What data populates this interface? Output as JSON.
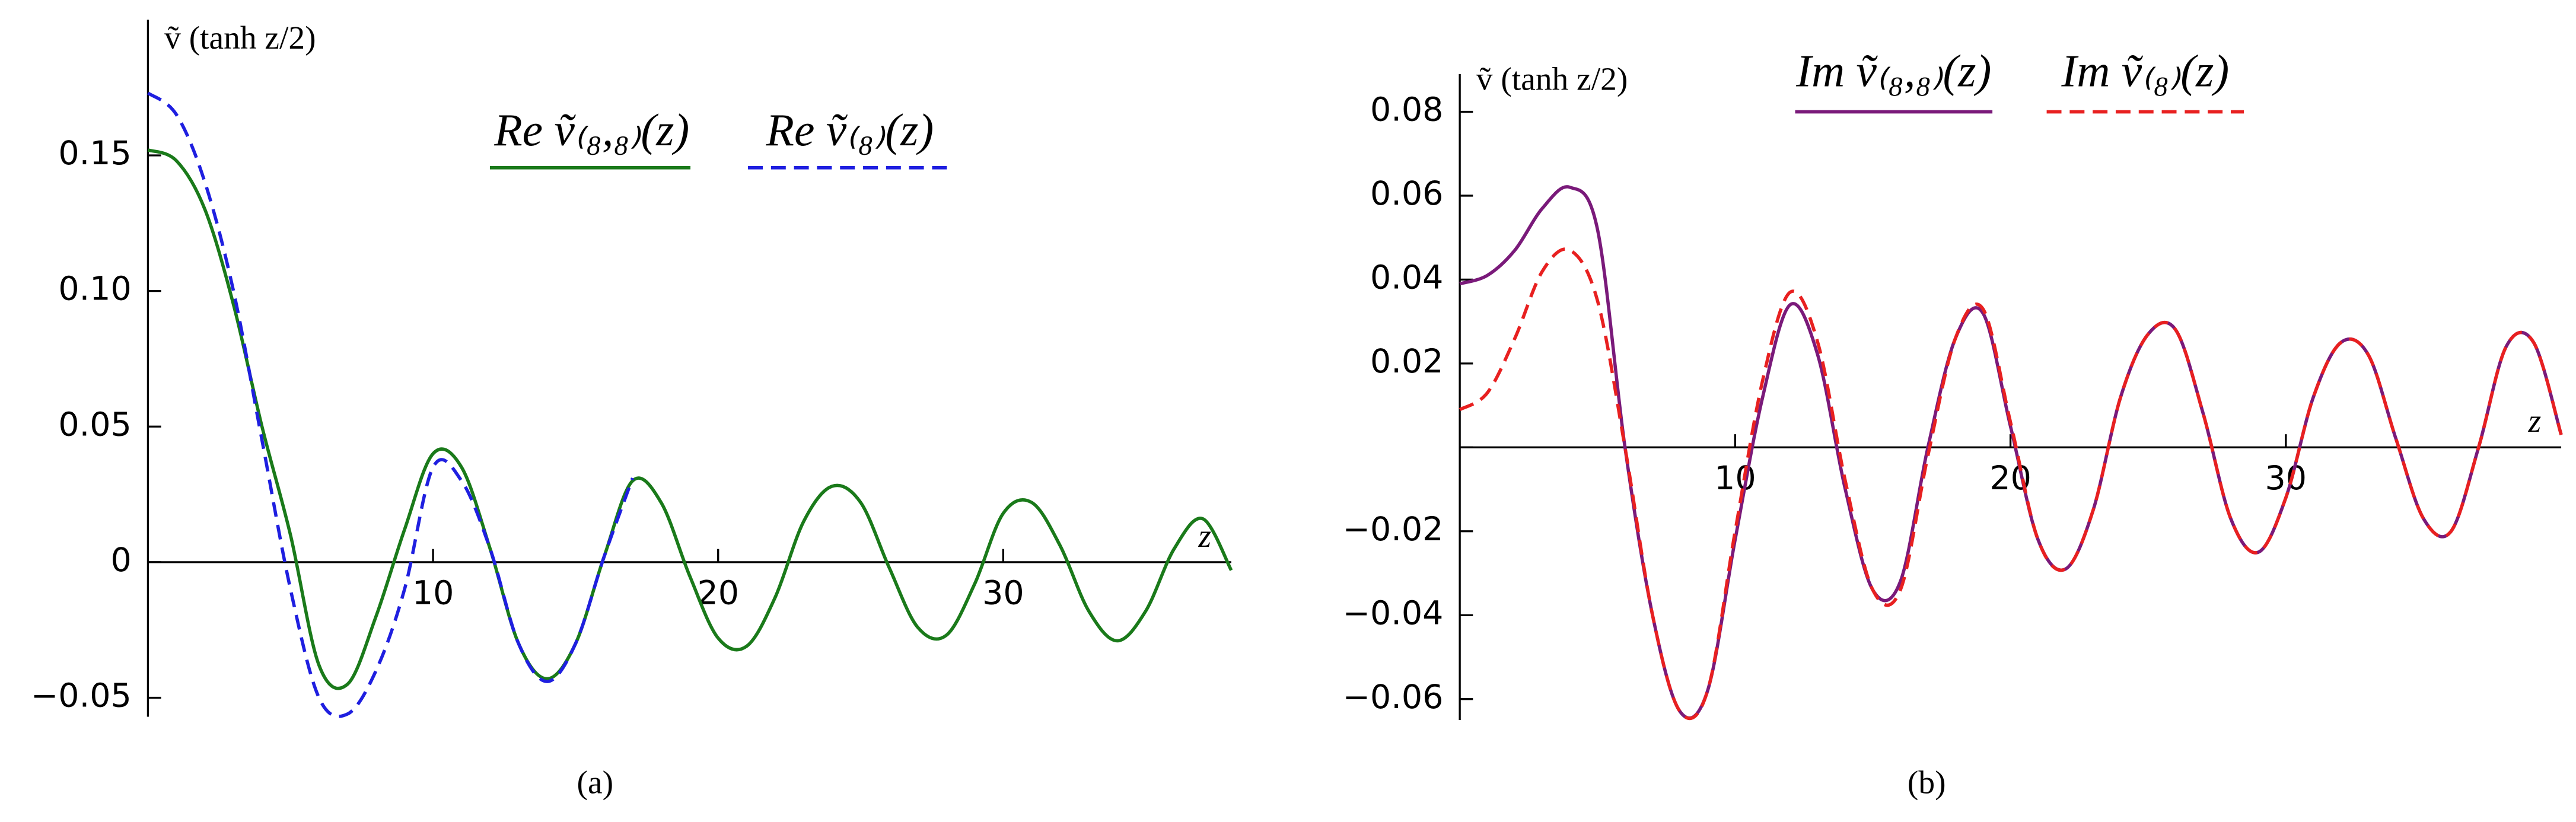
{
  "chart_data": [
    {
      "type": "line",
      "caption": "(a)",
      "y_label": "ṽ (tanh z/2)",
      "x_label": "z",
      "xlim": [
        0,
        38
      ],
      "ylim": [
        -0.057,
        0.2
      ],
      "xticks": [
        10,
        20,
        30
      ],
      "yticks": [
        {
          "value": -0.05,
          "label": "−0.05"
        },
        0,
        0.05,
        {
          "value": 0.1,
          "label": "0.10"
        },
        0.15
      ],
      "x": [
        0,
        1,
        2,
        3,
        4,
        5,
        6,
        7,
        8,
        9,
        10,
        11,
        12,
        13,
        14,
        15,
        16,
        17,
        18,
        19,
        20,
        21,
        22,
        23,
        24,
        25,
        26,
        27,
        28,
        29,
        30,
        31,
        32,
        33,
        34,
        35,
        36,
        37,
        38
      ],
      "series": [
        {
          "name": "Re ṽ₍₈,₈₎(z)",
          "color": "#1a7a1a",
          "dash": false,
          "values": [
            0.152,
            0.148,
            0.13,
            0.095,
            0.05,
            0.01,
            -0.038,
            -0.045,
            -0.02,
            0.012,
            0.04,
            0.035,
            0.005,
            -0.03,
            -0.043,
            -0.03,
            0.002,
            0.03,
            0.022,
            -0.005,
            -0.028,
            -0.031,
            -0.013,
            0.015,
            0.028,
            0.022,
            -0.002,
            -0.024,
            -0.027,
            -0.008,
            0.018,
            0.022,
            0.006,
            -0.018,
            -0.029,
            -0.018,
            0.005,
            0.016,
            -0.003
          ]
        },
        {
          "name": "Re ṽ₍₈₎(z)",
          "color": "#1f1fe0",
          "dash": true,
          "values": [
            0.173,
            0.165,
            0.14,
            0.1,
            0.045,
            -0.01,
            -0.05,
            -0.056,
            -0.04,
            -0.01,
            0.035,
            0.03,
            0.005,
            -0.03,
            -0.044,
            -0.03,
            0.002,
            0.031,
            null,
            null,
            null,
            null,
            null,
            null,
            null,
            null,
            null,
            null,
            null,
            null,
            null,
            null,
            null,
            null,
            null,
            null,
            null,
            null,
            null
          ]
        }
      ]
    },
    {
      "type": "line",
      "caption": "(b)",
      "y_label": "ṽ (tanh z/2)",
      "x_label": "z",
      "xlim": [
        0,
        40
      ],
      "ylim": [
        -0.065,
        0.089
      ],
      "xticks": [
        10,
        20,
        30
      ],
      "yticks": [
        {
          "value": -0.06,
          "label": "−0.06"
        },
        {
          "value": -0.04,
          "label": "−0.04"
        },
        {
          "value": -0.02,
          "label": "−0.02"
        },
        0,
        0.02,
        0.04,
        0.06,
        0.08
      ],
      "x": [
        0,
        1,
        2,
        3,
        4,
        5,
        6,
        7,
        8,
        9,
        10,
        11,
        12,
        13,
        14,
        15,
        16,
        17,
        18,
        19,
        20,
        21,
        22,
        23,
        24,
        25,
        26,
        27,
        28,
        29,
        30,
        31,
        32,
        33,
        34,
        35,
        36,
        37,
        38,
        39,
        40
      ],
      "series": [
        {
          "name": "Im ṽ₍₈,₈₎(z)",
          "color": "#7a1a7a",
          "dash": false,
          "values": [
            0.039,
            0.041,
            0.047,
            0.057,
            0.062,
            0.052,
            0.0,
            -0.04,
            -0.063,
            -0.058,
            -0.022,
            0.012,
            0.034,
            0.022,
            -0.01,
            -0.034,
            -0.032,
            0.0,
            0.026,
            0.032,
            0.005,
            -0.022,
            -0.029,
            -0.015,
            0.012,
            0.027,
            0.028,
            0.008,
            -0.017,
            -0.025,
            -0.012,
            0.012,
            0.025,
            0.022,
            0.002,
            -0.017,
            -0.02,
            0.0,
            0.024,
            0.025,
            0.003
          ]
        },
        {
          "name": "Im ṽ₍₈₎(z)",
          "color": "#e82020",
          "dash": true,
          "values": [
            0.009,
            0.013,
            0.026,
            0.042,
            0.047,
            0.035,
            0.0,
            -0.04,
            -0.063,
            -0.058,
            -0.02,
            0.016,
            0.037,
            0.025,
            -0.008,
            -0.034,
            -0.034,
            -0.002,
            0.026,
            0.033,
            0.006,
            -0.022,
            -0.029,
            -0.015,
            0.012,
            0.027,
            0.028,
            0.008,
            -0.017,
            -0.025,
            -0.012,
            0.012,
            0.025,
            0.022,
            0.002,
            -0.017,
            -0.02,
            0.0,
            0.024,
            0.025,
            0.003
          ]
        }
      ]
    }
  ]
}
